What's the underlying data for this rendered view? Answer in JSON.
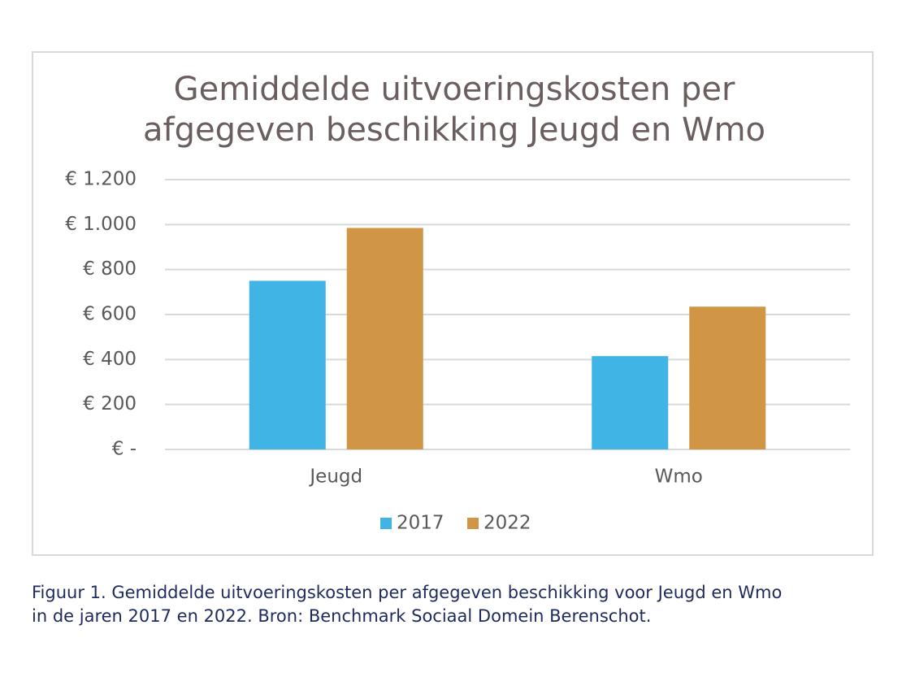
{
  "chart_data": {
    "type": "bar",
    "title_lines": [
      "Gemiddelde uitvoeringskosten per",
      "afgegeven beschikking Jeugd en Wmo"
    ],
    "categories": [
      "Jeugd",
      "Wmo"
    ],
    "series": [
      {
        "name": "2017",
        "values": [
          750,
          415
        ],
        "color": "#41b4e6"
      },
      {
        "name": "2022",
        "values": [
          985,
          635
        ],
        "color": "#d09545"
      }
    ],
    "y_ticks": [
      0,
      200,
      400,
      600,
      800,
      1000,
      1200
    ],
    "y_tick_labels": [
      "€ -",
      "€ 200",
      "€ 400",
      "€ 600",
      "€ 800",
      "€ 1.000",
      "€ 1.200"
    ],
    "ylim": [
      0,
      1200
    ],
    "xlabel": "",
    "ylabel": "",
    "grid": true,
    "legend_position": "bottom"
  },
  "caption": {
    "line1": "Figuur 1. Gemiddelde uitvoeringskosten per afgegeven beschikking voor Jeugd en Wmo",
    "line2": "in de jaren 2017 en 2022. Bron: Benchmark Sociaal Domein Berenschot."
  }
}
